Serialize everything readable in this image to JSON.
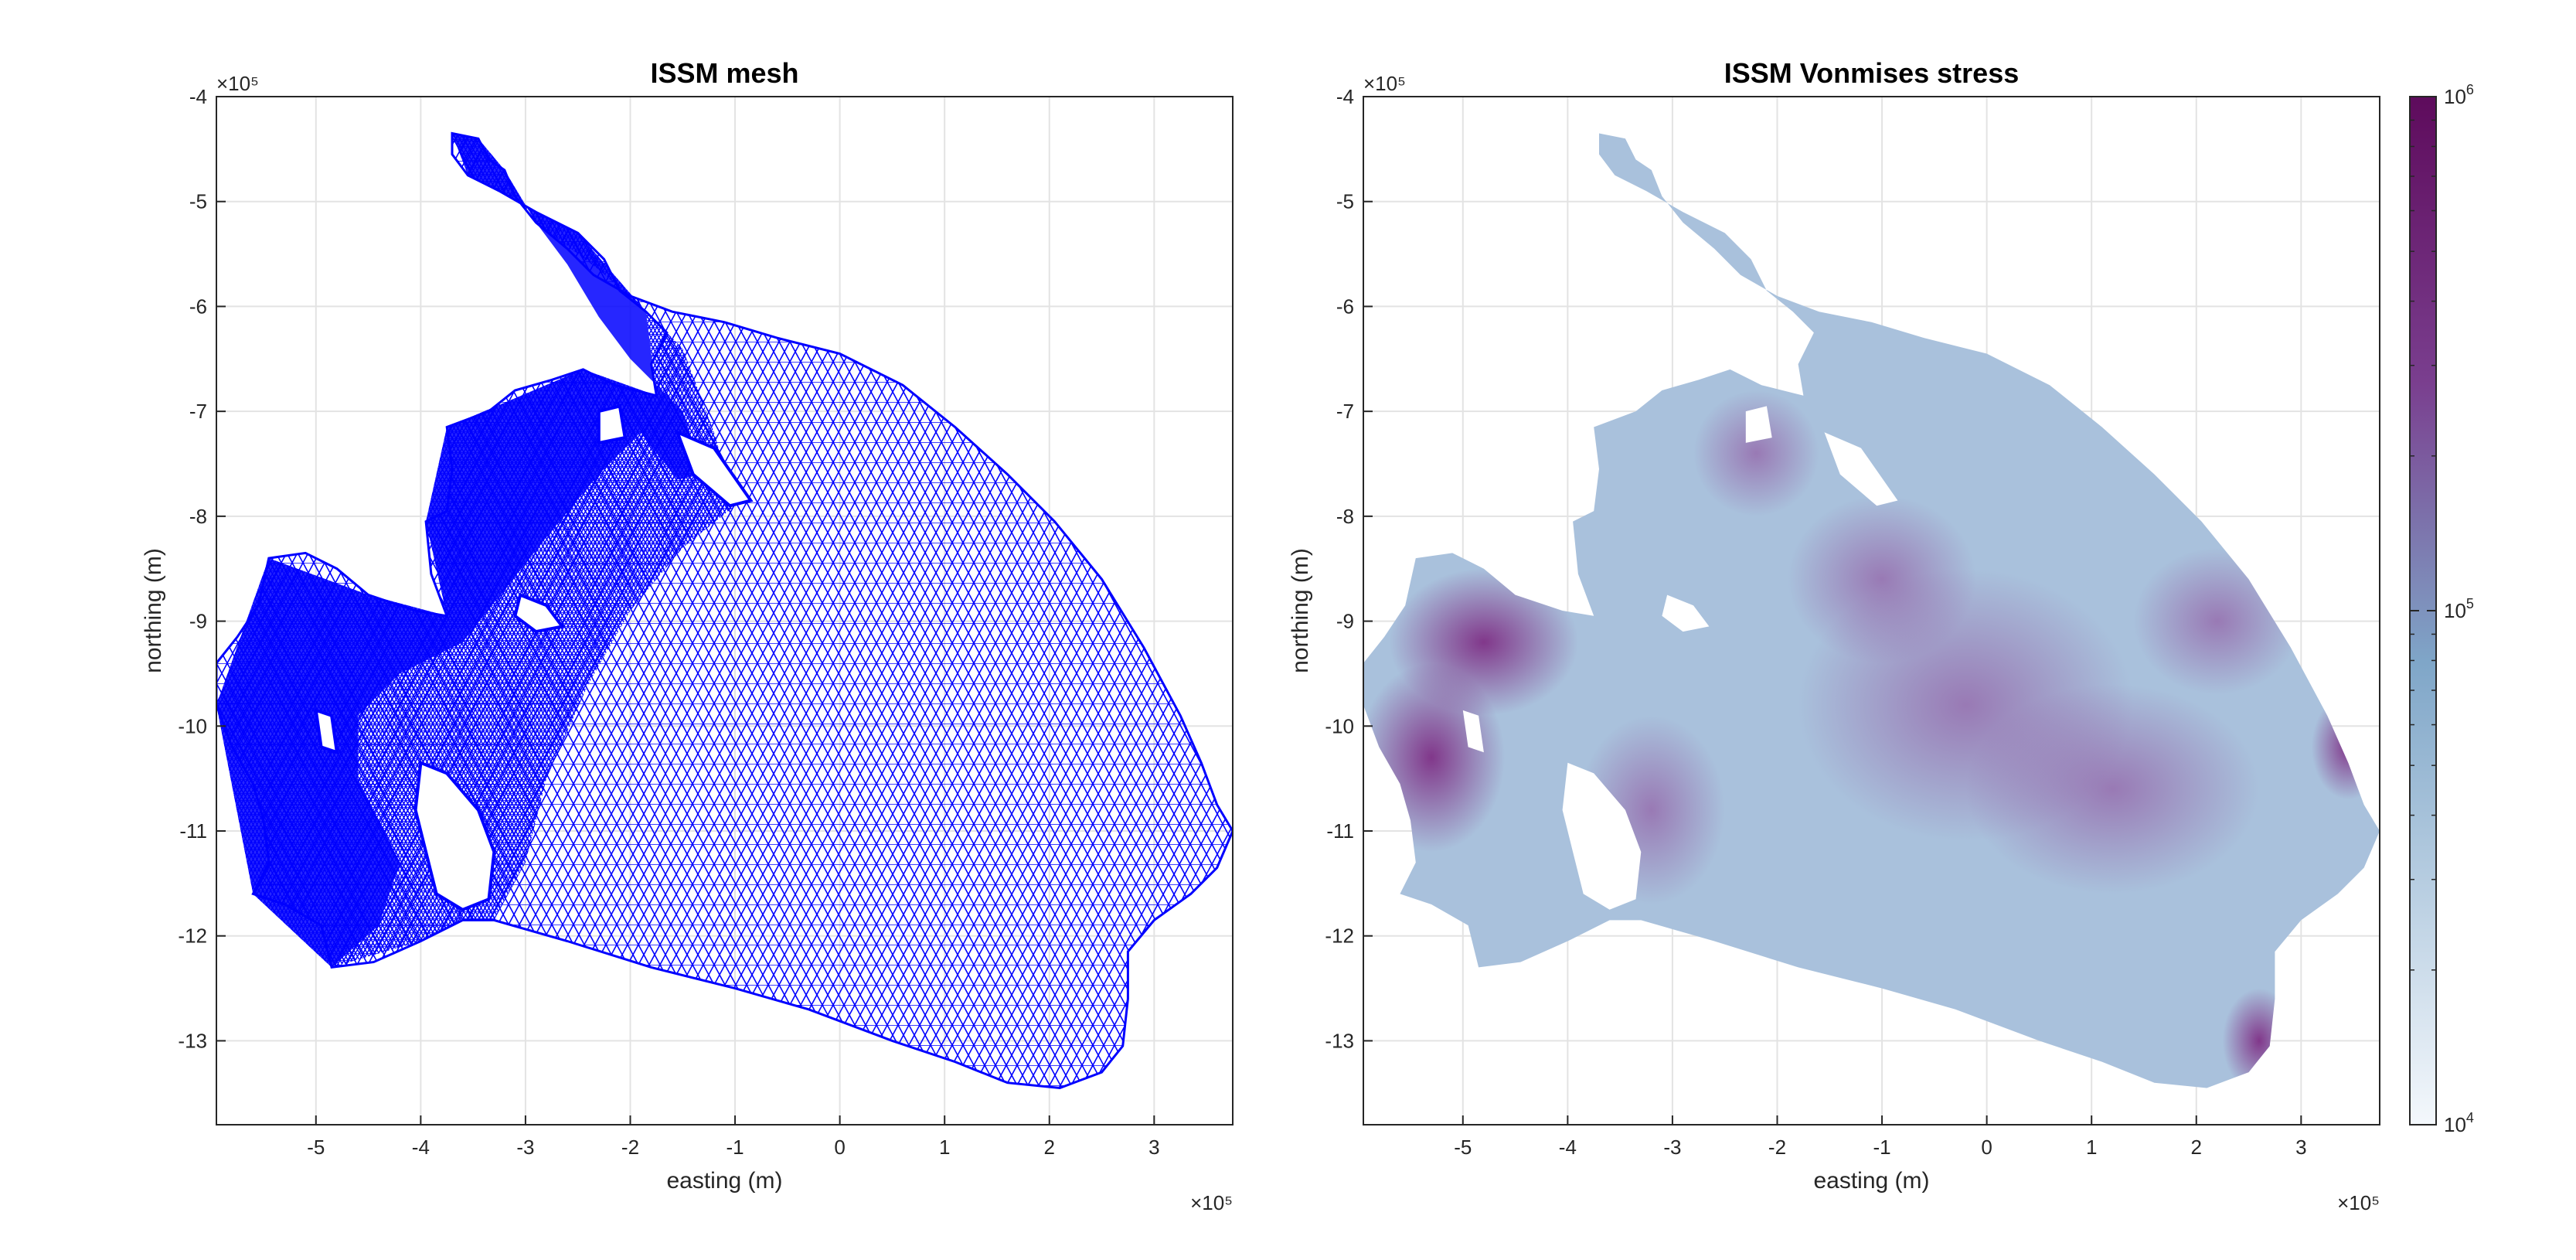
{
  "chart_data": [
    {
      "type": "mesh",
      "title": "ISSM mesh",
      "xlabel": "easting (m)",
      "ylabel": "northing (m)",
      "x_exponent_label": "×10⁵",
      "y_exponent_label": "×10⁵",
      "xlim": [
        -5.95,
        3.75
      ],
      "ylim": [
        -13.8,
        -4.0
      ],
      "xticks": [
        -5,
        -4,
        -3,
        -2,
        -1,
        0,
        1,
        2,
        3
      ],
      "yticks": [
        -4,
        -5,
        -6,
        -7,
        -8,
        -9,
        -10,
        -11,
        -12,
        -13
      ],
      "grid": true,
      "mesh_color": "#0000ff"
    },
    {
      "type": "heatmap",
      "title": "ISSM Vonmises stress",
      "xlabel": "easting (m)",
      "ylabel": "northing (m)",
      "x_exponent_label": "×10⁵",
      "y_exponent_label": "×10⁵",
      "xlim": [
        -5.95,
        3.75
      ],
      "ylim": [
        -13.8,
        -4.0
      ],
      "xticks": [
        -5,
        -4,
        -3,
        -2,
        -1,
        0,
        1,
        2,
        3
      ],
      "yticks": [
        -4,
        -5,
        -6,
        -7,
        -8,
        -9,
        -10,
        -11,
        -12,
        -13
      ],
      "grid": true,
      "colorbar": {
        "scale": "log",
        "range": [
          10000,
          1000000
        ],
        "tick_labels": [
          {
            "base": "10",
            "exp": "6",
            "value": 1000000
          },
          {
            "base": "10",
            "exp": "5",
            "value": 100000
          },
          {
            "base": "10",
            "exp": "4",
            "value": 10000
          }
        ],
        "colormap": [
          "#f4f8fc",
          "#7fa6c8",
          "#7a3f8f",
          "#5e0b5c"
        ]
      }
    }
  ]
}
